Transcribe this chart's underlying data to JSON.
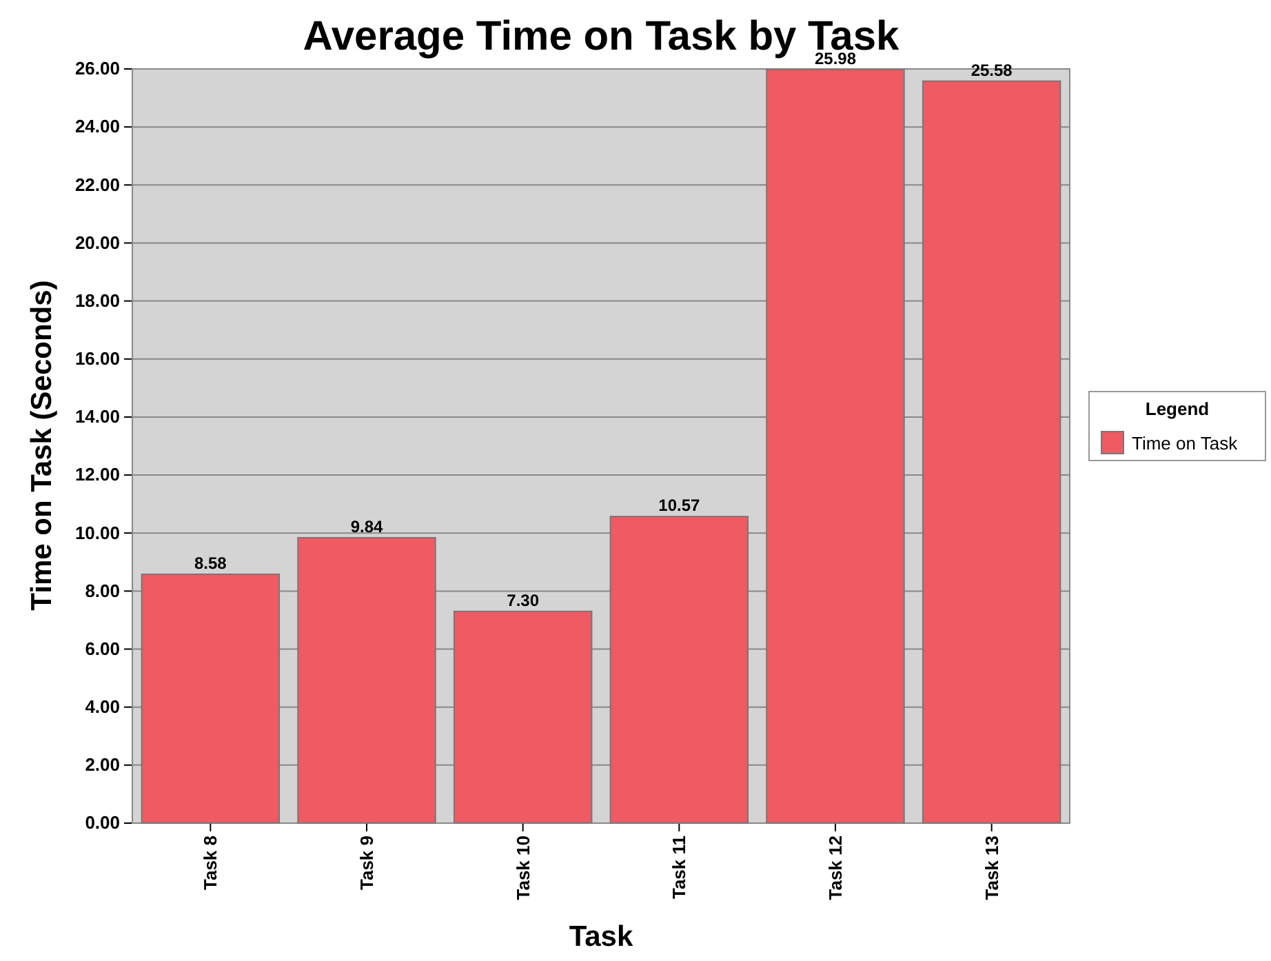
{
  "chart_data": {
    "type": "bar",
    "title": "Average Time on Task by Task",
    "xlabel": "Task",
    "ylabel": "Time on Task (Seconds)",
    "legend_title": "Legend",
    "categories": [
      "Task 8",
      "Task 9",
      "Task 10",
      "Task 11",
      "Task 12",
      "Task 13"
    ],
    "series": [
      {
        "name": "Time on Task",
        "color": "#f05a63",
        "values": [
          8.58,
          9.84,
          7.3,
          10.57,
          25.98,
          25.58
        ],
        "value_labels": [
          "8.58",
          "9.84",
          "7.30",
          "10.57",
          "25.98",
          "25.58"
        ]
      }
    ],
    "ylim": [
      0,
      26
    ],
    "yticks": [
      {
        "value": 0,
        "label": "0.00"
      },
      {
        "value": 2,
        "label": "2.00"
      },
      {
        "value": 4,
        "label": "4.00"
      },
      {
        "value": 6,
        "label": "6.00"
      },
      {
        "value": 8,
        "label": "8.00"
      },
      {
        "value": 10,
        "label": "10.00"
      },
      {
        "value": 12,
        "label": "12.00"
      },
      {
        "value": 14,
        "label": "14.00"
      },
      {
        "value": 16,
        "label": "16.00"
      },
      {
        "value": 18,
        "label": "18.00"
      },
      {
        "value": 20,
        "label": "20.00"
      },
      {
        "value": 22,
        "label": "22.00"
      },
      {
        "value": 24,
        "label": "24.00"
      },
      {
        "value": 26,
        "label": "26.00"
      }
    ],
    "grid": "y",
    "legend": "right"
  }
}
